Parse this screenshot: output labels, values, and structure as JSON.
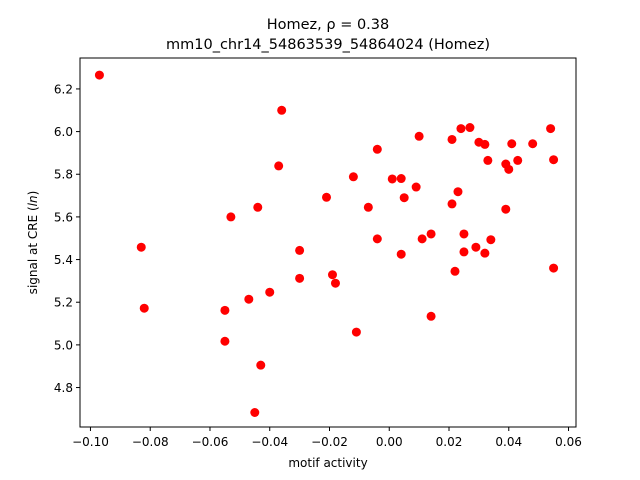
{
  "chart_data": {
    "type": "scatter",
    "title_line1": "Homez, ρ = 0.38",
    "title_line2": "mm10_chr14_54863539_54864024 (Homez)",
    "xlabel": "motif activity",
    "ylabel_prefix": "signal at CRE (",
    "ylabel_italic": "ln",
    "ylabel_suffix": ")",
    "xlim": [
      -0.1035,
      0.0625
    ],
    "ylim": [
      4.615,
      6.345
    ],
    "xticks": [
      -0.1,
      -0.08,
      -0.06,
      -0.04,
      -0.02,
      0.0,
      0.02,
      0.04,
      0.06
    ],
    "xtick_labels": [
      "−0.10",
      "−0.08",
      "−0.06",
      "−0.04",
      "−0.02",
      "0.00",
      "0.02",
      "0.04",
      "0.06"
    ],
    "yticks": [
      4.8,
      5.0,
      5.2,
      5.4,
      5.6,
      5.8,
      6.0,
      6.2
    ],
    "ytick_labels": [
      "4.8",
      "5.0",
      "5.2",
      "5.4",
      "5.6",
      "5.8",
      "6.0",
      "6.2"
    ],
    "point_color": "#ff0000",
    "grid": false,
    "points": [
      [
        -0.097,
        6.265
      ],
      [
        -0.083,
        5.458
      ],
      [
        -0.082,
        5.172
      ],
      [
        -0.055,
        5.162
      ],
      [
        -0.055,
        5.017
      ],
      [
        -0.053,
        5.6
      ],
      [
        -0.047,
        5.214
      ],
      [
        -0.045,
        4.683
      ],
      [
        -0.044,
        5.645
      ],
      [
        -0.043,
        4.905
      ],
      [
        -0.04,
        5.247
      ],
      [
        -0.037,
        5.839
      ],
      [
        -0.036,
        6.1
      ],
      [
        -0.03,
        5.443
      ],
      [
        -0.03,
        5.312
      ],
      [
        -0.021,
        5.692
      ],
      [
        -0.019,
        5.329
      ],
      [
        -0.018,
        5.289
      ],
      [
        -0.012,
        5.788
      ],
      [
        -0.011,
        5.06
      ],
      [
        -0.007,
        5.645
      ],
      [
        -0.004,
        5.917
      ],
      [
        -0.004,
        5.497
      ],
      [
        0.001,
        5.778
      ],
      [
        0.004,
        5.78
      ],
      [
        0.004,
        5.425
      ],
      [
        0.005,
        5.69
      ],
      [
        0.009,
        5.74
      ],
      [
        0.01,
        5.978
      ],
      [
        0.011,
        5.497
      ],
      [
        0.014,
        5.52
      ],
      [
        0.014,
        5.134
      ],
      [
        0.021,
        5.963
      ],
      [
        0.021,
        5.661
      ],
      [
        0.022,
        5.345
      ],
      [
        0.023,
        5.718
      ],
      [
        0.024,
        6.014
      ],
      [
        0.025,
        5.52
      ],
      [
        0.025,
        5.436
      ],
      [
        0.027,
        6.019
      ],
      [
        0.029,
        5.458
      ],
      [
        0.03,
        5.95
      ],
      [
        0.032,
        5.94
      ],
      [
        0.032,
        5.43
      ],
      [
        0.033,
        5.865
      ],
      [
        0.034,
        5.493
      ],
      [
        0.039,
        5.848
      ],
      [
        0.039,
        5.636
      ],
      [
        0.04,
        5.823
      ],
      [
        0.041,
        5.943
      ],
      [
        0.043,
        5.865
      ],
      [
        0.048,
        5.943
      ],
      [
        0.054,
        6.014
      ],
      [
        0.055,
        5.868
      ],
      [
        0.055,
        5.36
      ]
    ]
  }
}
